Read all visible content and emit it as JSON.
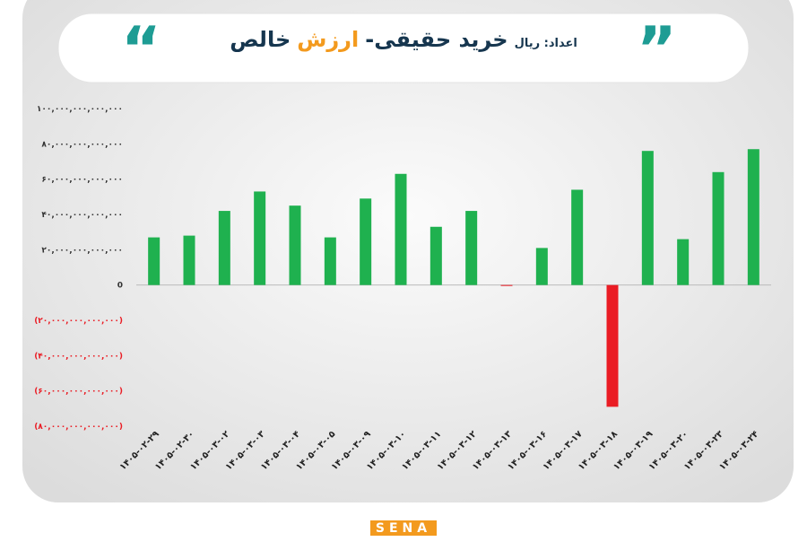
{
  "chart_data": {
    "type": "bar",
    "title_parts": [
      "خالص",
      "ارزش",
      "خرید حقیقی-",
      "اعداد: ریال"
    ],
    "categories": [
      "۱۴۰۵-۰۲-۲۹",
      "۱۴۰۵-۰۲-۳۰",
      "۱۴۰۵-۰۳-۰۲",
      "۱۴۰۵-۰۳-۰۳",
      "۱۴۰۵-۰۳-۰۴",
      "۱۴۰۵-۰۳-۰۵",
      "۱۴۰۵-۰۳-۰۹",
      "۱۴۰۵-۰۳-۱۰",
      "۱۴۰۵-۰۳-۱۱",
      "۱۴۰۵-۰۳-۱۲",
      "۱۴۰۵-۰۳-۱۳",
      "۱۴۰۵-۰۳-۱۶",
      "۱۴۰۵-۰۳-۱۷",
      "۱۴۰۵-۰۳-۱۸",
      "۱۴۰۵-۰۳-۱۹",
      "۱۴۰۵-۰۳-۲۰",
      "۱۴۰۵-۰۳-۲۳",
      "۱۴۰۵-۰۳-۲۴"
    ],
    "values": [
      27000000000000,
      28000000000000,
      42000000000000,
      53000000000000,
      45000000000000,
      27000000000000,
      49000000000000,
      63000000000000,
      33000000000000,
      42000000000000,
      -500000000000,
      21000000000000,
      54000000000000,
      -69000000000000,
      76000000000000,
      26000000000000,
      64000000000000,
      77000000000000
    ],
    "positive_color": "#1fb14f",
    "negative_color": "#ea1c24",
    "ylim": [
      -80000000000000,
      100000000000000
    ],
    "yticks": [
      {
        "value": 100000000000000,
        "label": "۱۰۰,۰۰۰,۰۰۰,۰۰۰,۰۰۰"
      },
      {
        "value": 80000000000000,
        "label": "۸۰,۰۰۰,۰۰۰,۰۰۰,۰۰۰"
      },
      {
        "value": 60000000000000,
        "label": "۶۰,۰۰۰,۰۰۰,۰۰۰,۰۰۰"
      },
      {
        "value": 40000000000000,
        "label": "۴۰,۰۰۰,۰۰۰,۰۰۰,۰۰۰"
      },
      {
        "value": 20000000000000,
        "label": "۲۰,۰۰۰,۰۰۰,۰۰۰,۰۰۰"
      },
      0,
      {
        "value": -20000000000000,
        "label": "(۲۰,۰۰۰,۰۰۰,۰۰۰,۰۰۰)"
      },
      {
        "value": -40000000000000,
        "label": "(۴۰,۰۰۰,۰۰۰,۰۰۰,۰۰۰)"
      },
      {
        "value": -60000000000000,
        "label": "(۶۰,۰۰۰,۰۰۰,۰۰۰,۰۰۰)"
      },
      {
        "value": -80000000000000,
        "label": "(۸۰,۰۰۰,۰۰۰,۰۰۰,۰۰۰)"
      }
    ],
    "grid": false,
    "logo": "SENA"
  }
}
